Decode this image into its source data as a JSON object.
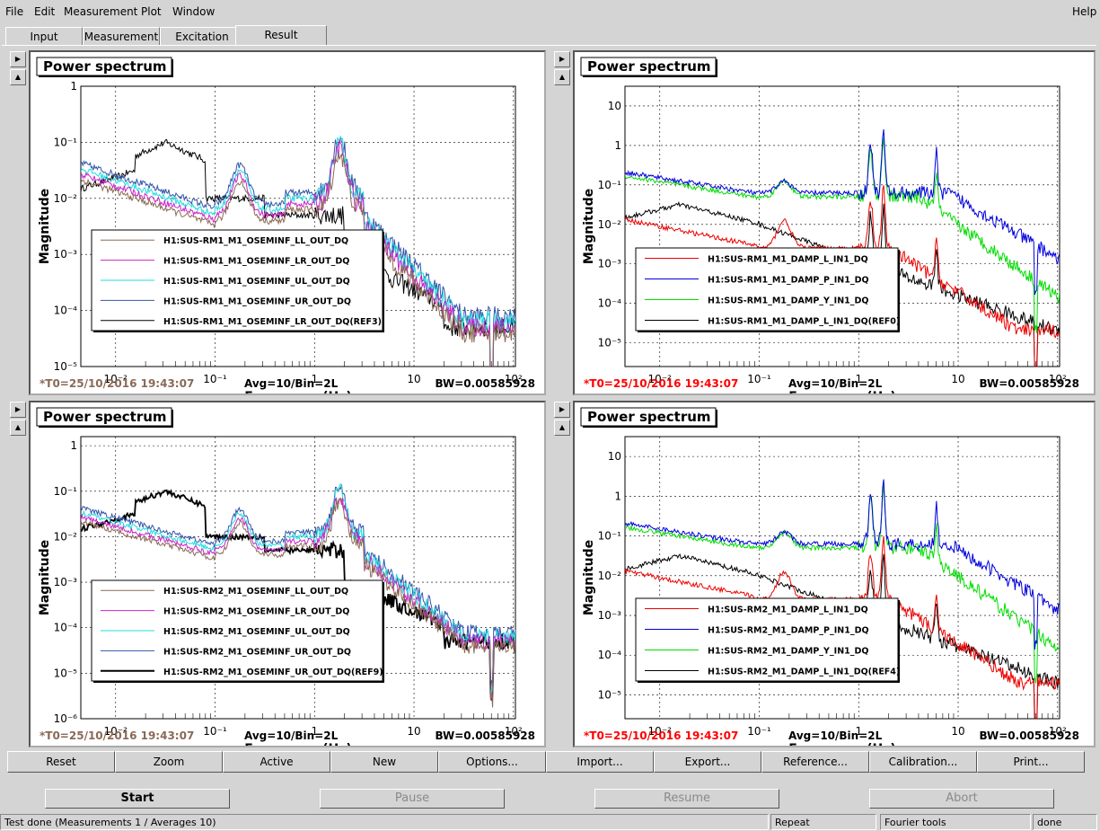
{
  "menubar": {
    "file": "File",
    "edit": "Edit",
    "measurement": "Measurement",
    "plot": "Plot",
    "window": "Window",
    "help": "Help"
  },
  "tabs": [
    "Input",
    "Measurement",
    "Excitation",
    "Result"
  ],
  "plots": [
    {
      "title": "Power spectrum",
      "t0": "*T0=25/10/2016 19:43:07",
      "t0_color": "#8a6a55",
      "avg": "Avg=10/Bin=2L",
      "bw": "BW=0.00585928",
      "legend": [
        "H1:SUS-RM1_M1_OSEMINF_LL_OUT_DQ",
        "H1:SUS-RM1_M1_OSEMINF_LR_OUT_DQ",
        "H1:SUS-RM1_M1_OSEMINF_UL_OUT_DQ",
        "H1:SUS-RM1_M1_OSEMINF_UR_OUT_DQ",
        "H1:SUS-RM1_M1_OSEMINF_LR_OUT_DQ(REF3)"
      ]
    },
    {
      "title": "Power spectrum",
      "t0": "*T0=25/10/2016 19:43:07",
      "t0_color": "#ff0000",
      "avg": "Avg=10/Bin=2L",
      "bw": "BW=0.00585928",
      "legend": [
        "H1:SUS-RM1_M1_DAMP_L_IN1_DQ",
        "H1:SUS-RM1_M1_DAMP_P_IN1_DQ",
        "H1:SUS-RM1_M1_DAMP_Y_IN1_DQ",
        "H1:SUS-RM1_M1_DAMP_L_IN1_DQ(REF0)"
      ]
    },
    {
      "title": "Power spectrum",
      "t0": "*T0=25/10/2016 19:43:07",
      "t0_color": "#8a6a55",
      "avg": "Avg=10/Bin=2L",
      "bw": "BW=0.00585928",
      "legend": [
        "H1:SUS-RM2_M1_OSEMINF_LL_OUT_DQ",
        "H1:SUS-RM2_M1_OSEMINF_LR_OUT_DQ",
        "H1:SUS-RM2_M1_OSEMINF_UL_OUT_DQ",
        "H1:SUS-RM2_M1_OSEMINF_UR_OUT_DQ",
        "H1:SUS-RM2_M1_OSEMINF_UR_OUT_DQ(REF9)"
      ]
    },
    {
      "title": "Power spectrum",
      "t0": "*T0=25/10/2016 19:43:07",
      "t0_color": "#ff0000",
      "avg": "Avg=10/Bin=2L",
      "bw": "BW=0.00585928",
      "legend": [
        "H1:SUS-RM2_M1_DAMP_L_IN1_DQ",
        "H1:SUS-RM2_M1_DAMP_P_IN1_DQ",
        "H1:SUS-RM2_M1_DAMP_Y_IN1_DQ",
        "H1:SUS-RM2_M1_DAMP_L_IN1_DQ(REF4)"
      ]
    }
  ],
  "axes": {
    "xlabel": "Frequency (Hz)",
    "ylabel": "Magnitude",
    "xticks": [
      "10⁻²",
      "10⁻¹",
      "1",
      "10",
      "10²"
    ],
    "ytick_sets": {
      "a": [
        "1",
        "10⁻¹",
        "10⁻²",
        "10⁻³",
        "10⁻⁴",
        "10⁻⁵"
      ],
      "b": [
        "10",
        "1",
        "10⁻¹",
        "10⁻²",
        "10⁻³",
        "10⁻⁴",
        "10⁻⁵"
      ],
      "c": [
        "1",
        "10⁻¹",
        "10⁻²",
        "10⁻³",
        "10⁻⁴",
        "10⁻⁵",
        "10⁻⁶"
      ]
    }
  },
  "buttons": [
    "Reset",
    "Zoom",
    "Active",
    "New",
    "Options...",
    "Import...",
    "Export...",
    "Reference...",
    "Calibration...",
    "Print..."
  ],
  "run_buttons": [
    "Start",
    "Pause",
    "Resume",
    "Abort"
  ],
  "status": {
    "main": "Test done (Measurements 1 / Averages 10)",
    "mode": "Repeat",
    "tool": "Fourier tools",
    "state": "done"
  }
}
